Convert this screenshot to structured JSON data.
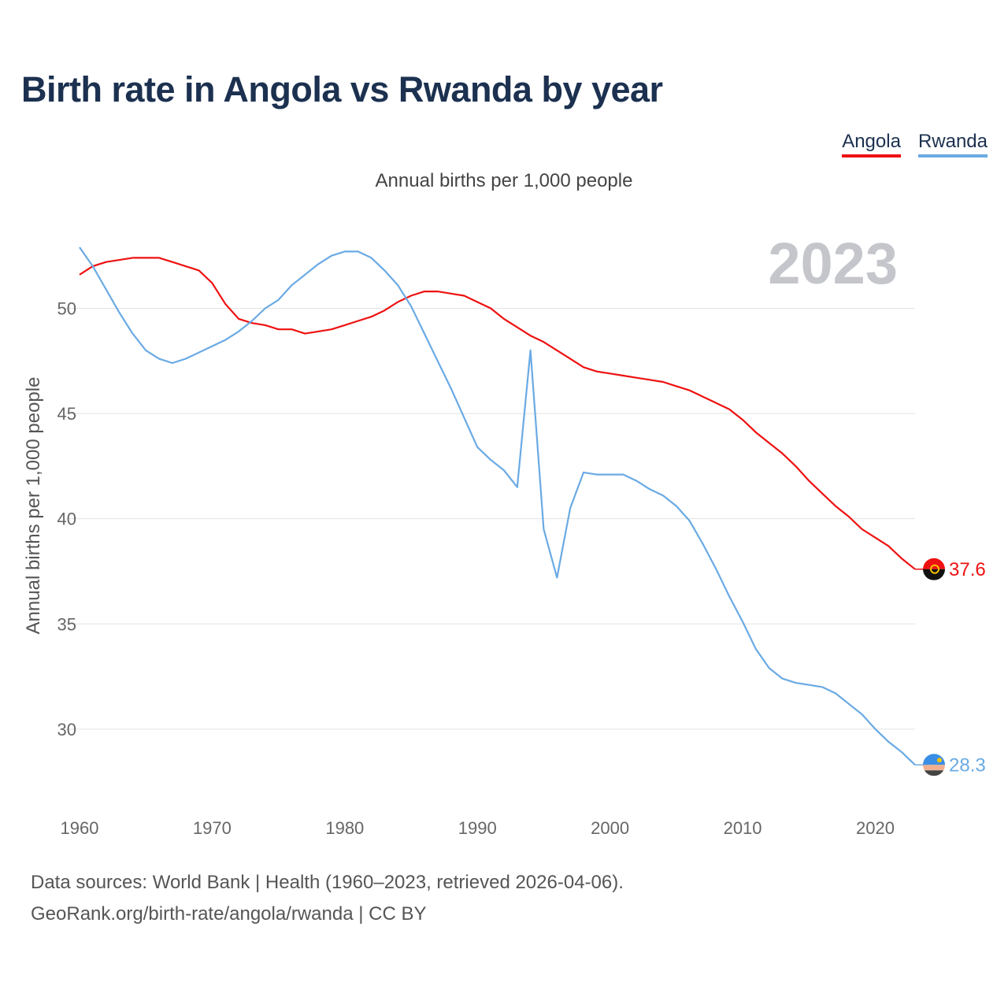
{
  "chart_data": {
    "type": "line",
    "title": "Birth rate in Angola vs Rwanda by year",
    "subtitle": "Annual births per 1,000 people",
    "ylabel": "Annual births per 1,000 people",
    "xlabel": "",
    "year_watermark": "2023",
    "xlim": [
      1960,
      2023
    ],
    "ylim": [
      27,
      53.5
    ],
    "x_ticks": [
      1960,
      1970,
      1980,
      1990,
      2000,
      2010,
      2020
    ],
    "y_ticks": [
      30,
      35,
      40,
      45,
      50
    ],
    "grid": true,
    "legend_position": "top-right",
    "x": [
      1960,
      1961,
      1962,
      1963,
      1964,
      1965,
      1966,
      1967,
      1968,
      1969,
      1970,
      1971,
      1972,
      1973,
      1974,
      1975,
      1976,
      1977,
      1978,
      1979,
      1980,
      1981,
      1982,
      1983,
      1984,
      1985,
      1986,
      1987,
      1988,
      1989,
      1990,
      1991,
      1992,
      1993,
      1994,
      1995,
      1996,
      1997,
      1998,
      1999,
      2000,
      2001,
      2002,
      2003,
      2004,
      2005,
      2006,
      2007,
      2008,
      2009,
      2010,
      2011,
      2012,
      2013,
      2014,
      2015,
      2016,
      2017,
      2018,
      2019,
      2020,
      2021,
      2022,
      2023
    ],
    "series": [
      {
        "name": "Angola",
        "color": "#ee1111",
        "end_label": "37.6",
        "values": [
          51.6,
          52.0,
          52.2,
          52.3,
          52.4,
          52.4,
          52.4,
          52.2,
          52.0,
          51.8,
          51.2,
          50.2,
          49.5,
          49.3,
          49.2,
          49.0,
          49.0,
          48.8,
          48.9,
          49.0,
          49.2,
          49.4,
          49.6,
          49.9,
          50.3,
          50.6,
          50.8,
          50.8,
          50.7,
          50.6,
          50.3,
          50.0,
          49.5,
          49.1,
          48.7,
          48.4,
          48.0,
          47.6,
          47.2,
          47.0,
          46.9,
          46.8,
          46.7,
          46.6,
          46.5,
          46.3,
          46.1,
          45.8,
          45.5,
          45.2,
          44.7,
          44.1,
          43.6,
          43.1,
          42.5,
          41.8,
          41.2,
          40.6,
          40.1,
          39.5,
          39.1,
          38.7,
          38.1,
          37.6
        ]
      },
      {
        "name": "Rwanda",
        "color": "#6aaae4",
        "end_label": "28.3",
        "values": [
          52.9,
          52.0,
          50.9,
          49.8,
          48.8,
          48.0,
          47.6,
          47.4,
          47.6,
          47.9,
          48.2,
          48.5,
          48.9,
          49.4,
          50.0,
          50.4,
          51.1,
          51.6,
          52.1,
          52.5,
          52.7,
          52.7,
          52.4,
          51.8,
          51.1,
          50.1,
          48.8,
          47.5,
          46.2,
          44.8,
          43.4,
          42.8,
          42.3,
          41.5,
          48.0,
          39.5,
          37.2,
          40.5,
          42.2,
          42.1,
          42.1,
          42.1,
          41.8,
          41.4,
          41.1,
          40.6,
          39.9,
          38.8,
          37.6,
          36.3,
          35.1,
          33.8,
          32.9,
          32.4,
          32.2,
          32.1,
          32.0,
          31.7,
          31.2,
          30.7,
          30.0,
          29.4,
          28.9,
          28.3
        ]
      }
    ]
  },
  "footer": {
    "source_line1": "Data sources: World Bank | Health (1960–2023, retrieved 2026-04-06).",
    "source_line2": "GeoRank.org/birth-rate/angola/rwanda | CC BY"
  }
}
